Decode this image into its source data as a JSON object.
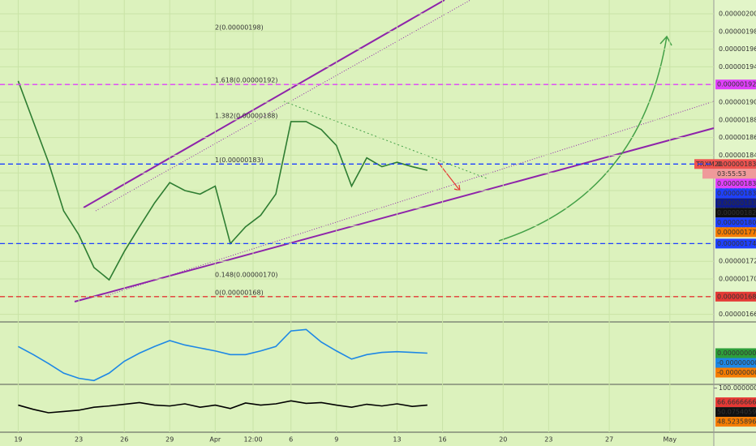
{
  "chart_data": [
    {
      "type": "line",
      "x": [
        0,
        1,
        2,
        3,
        4,
        5,
        6,
        7,
        8,
        9,
        10,
        11,
        12,
        13,
        14,
        15,
        16,
        17,
        18,
        19,
        20,
        21,
        22,
        23,
        24,
        25,
        26,
        27
      ],
      "series": [
        {
          "name": "TRXM20",
          "color": "#2e7d32",
          "values": [
            1.924e-06,
            1.878e-06,
            1.832e-06,
            1.777e-06,
            1.75e-06,
            1.713e-06,
            1.699e-06,
            1.731e-06,
            1.759e-06,
            1.786e-06,
            1.809e-06,
            1.8e-06,
            1.796e-06,
            1.805e-06,
            1.74e-06,
            1.759e-06,
            1.772e-06,
            1.796e-06,
            1.878e-06,
            1.878e-06,
            1.869e-06,
            1.851e-06,
            1.805e-06,
            1.837e-06,
            1.827e-06,
            1.832e-06,
            1.827e-06,
            1.823e-06
          ]
        }
      ],
      "xlim": [
        -1.2,
        45.9
      ],
      "xticks": [
        {
          "value": 0,
          "label": "19"
        },
        {
          "value": 4,
          "label": "23"
        },
        {
          "value": 7,
          "label": "26"
        },
        {
          "value": 10,
          "label": "29"
        },
        {
          "value": 13,
          "label": "Apr"
        },
        {
          "value": 15.5,
          "label": "12:00"
        },
        {
          "value": 18,
          "label": "6"
        },
        {
          "value": 21,
          "label": "9"
        },
        {
          "value": 25,
          "label": "13"
        },
        {
          "value": 28,
          "label": "16"
        },
        {
          "value": 32,
          "label": "20"
        },
        {
          "value": 35,
          "label": "23"
        },
        {
          "value": 39,
          "label": "27"
        },
        {
          "value": 43,
          "label": "May"
        }
      ],
      "ylim": [
        1.6532e-06,
        2.0156e-06
      ],
      "yticks": [
        {
          "value": 1.66e-06,
          "label": "0.00000166"
        },
        {
          "value": 1.68e-06,
          "label": "0.00000168"
        },
        {
          "value": 1.7e-06,
          "label": "0.00000170"
        },
        {
          "value": 1.72e-06,
          "label": "0.00000172"
        },
        {
          "value": 1.74e-06,
          "label": "0.00000174"
        },
        {
          "value": 1.76e-06,
          "label": "0.00000176"
        },
        {
          "value": 1.78e-06,
          "label": "0.00000178"
        },
        {
          "value": 1.8e-06,
          "label": "0.00000180"
        },
        {
          "value": 1.82e-06,
          "label": "0.00000182"
        },
        {
          "value": 1.84e-06,
          "label": "0.00000184"
        },
        {
          "value": 1.86e-06,
          "label": "0.00000186"
        },
        {
          "value": 1.88e-06,
          "label": "0.00000188"
        },
        {
          "value": 1.9e-06,
          "label": "0.00000190"
        },
        {
          "value": 1.92e-06,
          "label": "0.00000192"
        },
        {
          "value": 1.94e-06,
          "label": "0.00000194"
        },
        {
          "value": 1.96e-06,
          "label": "0.00000196"
        },
        {
          "value": 1.98e-06,
          "label": "0.00000198"
        },
        {
          "value": 2e-06,
          "label": "0.00000200"
        }
      ],
      "grid": true,
      "annotations": [
        {
          "value": 1.98e-06,
          "label": "2(0.00000198)"
        },
        {
          "value": 1.92e-06,
          "label": "1.618(0.00000192)"
        },
        {
          "value": 1.88e-06,
          "label": "1.382(0.00000188)"
        },
        {
          "value": 1.83e-06,
          "label": "1(0.00000183)"
        },
        {
          "value": 1.7e-06,
          "label": "0.148(0.00000170)"
        },
        {
          "value": 1.68e-06,
          "label": "0(0.00000168)"
        }
      ],
      "price_labels": [
        {
          "value": 1.92e-06,
          "label": "0.00000192",
          "color": "#e040fb",
          "line": true
        },
        {
          "value": 1.83e-06,
          "label": "0.00000183",
          "color": "#ef5350"
        },
        {
          "value": 1.83e-06,
          "label": "0.00000183",
          "color": "#e040fb"
        },
        {
          "value": 1.83e-06,
          "label": "0.00000183",
          "color": "#1e40ff",
          "line": true
        },
        {
          "value": 1.83e-06,
          "label": "0.00000183",
          "color": "#0d1b8c"
        },
        {
          "value": 1.82e-06,
          "label": "0.00000182",
          "color": "#111111"
        },
        {
          "value": 1.8e-06,
          "label": "0.00000180",
          "color": "#1e40ff"
        },
        {
          "value": 1.77e-06,
          "label": "0.00000177",
          "color": "#f57c00"
        },
        {
          "value": 1.74e-06,
          "label": "0.00000174",
          "color": "#1e40ff",
          "line": true
        },
        {
          "value": 1.68e-06,
          "label": "0.00000168",
          "color": "#e53935",
          "line": true
        }
      ],
      "symbol": "TRXM20",
      "countdown": "03:55:53"
    },
    {
      "type": "line",
      "x": [
        0,
        1,
        2,
        3,
        4,
        5,
        6,
        7,
        8,
        9,
        10,
        11,
        12,
        13,
        14,
        15,
        16,
        17,
        18,
        19,
        20,
        21,
        22,
        23,
        24,
        25,
        26,
        27
      ],
      "color": "#1e88e5",
      "values": [
        9e-09,
        -2e-09,
        -1.4e-08,
        -2.7e-08,
        -3.4e-08,
        -3.7e-08,
        -2.7e-08,
        -1.1e-08,
        0,
        9e-09,
        1.7e-08,
        1.1e-08,
        7e-09,
        3e-09,
        -2e-09,
        -2e-09,
        3e-09,
        9e-09,
        3e-08,
        3.2e-08,
        1.5e-08,
        3e-09,
        -8e-09,
        -2e-09,
        1e-09,
        2e-09,
        1e-09,
        0
      ],
      "ylim": [
        -4e-08,
        4e-08
      ],
      "price_labels": [
        {
          "value": 0,
          "label": "0.00000000",
          "color": "#2e9e3a"
        },
        {
          "value": 0,
          "label": "-0.00000000",
          "color": "#1e88e5"
        },
        {
          "value": 0,
          "label": "-0.00000000",
          "color": "#f57c00"
        }
      ]
    },
    {
      "type": "line",
      "x": [
        0,
        1,
        2,
        3,
        4,
        5,
        6,
        7,
        8,
        9,
        10,
        11,
        12,
        13,
        14,
        15,
        16,
        17,
        18,
        19,
        20,
        21,
        22,
        23,
        24,
        25,
        26,
        27
      ],
      "color": "#000000",
      "values": [
        60,
        50,
        42,
        45,
        48,
        55,
        58,
        62,
        66,
        60,
        58,
        63,
        55,
        60,
        52,
        65,
        60,
        63,
        70,
        64,
        66,
        60,
        55,
        62,
        58,
        63,
        57,
        60
      ],
      "ylim": [
        0,
        105
      ],
      "yticks": [
        {
          "value": 100,
          "label": "100.00000000"
        }
      ],
      "price_labels": [
        {
          "value": 66.66666667,
          "label": "66.66666667",
          "color": "#e53935"
        },
        {
          "value": 50.0754059,
          "label": "50.07540590",
          "color": "#111111"
        },
        {
          "value": 48.52358962,
          "label": "48.52358962",
          "color": "#f57c00"
        }
      ]
    }
  ]
}
